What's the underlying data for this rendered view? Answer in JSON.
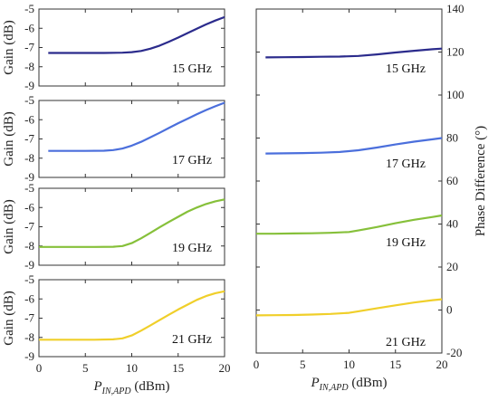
{
  "chart_data": [
    {
      "type": "line",
      "ylabel": "Gain (dB)",
      "xlim": [
        0,
        20
      ],
      "ylim": [
        -9,
        -5
      ],
      "yticks": [
        -5,
        -6,
        -7,
        -8,
        -9
      ],
      "xticks": [
        0,
        5,
        10,
        15,
        20
      ],
      "annotation": "15 GHz",
      "color": "#2b2b8c",
      "series": [
        {
          "x": [
            1,
            3,
            5,
            7,
            9,
            10,
            11,
            12,
            13,
            14,
            15,
            16,
            17,
            18,
            19,
            20
          ],
          "values": [
            -7.28,
            -7.28,
            -7.28,
            -7.28,
            -7.27,
            -7.24,
            -7.18,
            -7.06,
            -6.9,
            -6.7,
            -6.48,
            -6.25,
            -6.02,
            -5.8,
            -5.6,
            -5.42
          ]
        }
      ]
    },
    {
      "type": "line",
      "ylabel": "Gain (dB)",
      "xlim": [
        0,
        20
      ],
      "ylim": [
        -9,
        -5
      ],
      "yticks": [
        -5,
        -6,
        -7,
        -8,
        -9
      ],
      "xticks": [
        0,
        5,
        10,
        15,
        20
      ],
      "annotation": "17 GHz",
      "color": "#4b6fdc",
      "series": [
        {
          "x": [
            1,
            3,
            5,
            7,
            8,
            9,
            10,
            11,
            12,
            13,
            14,
            15,
            16,
            17,
            18,
            19,
            20
          ],
          "values": [
            -7.62,
            -7.62,
            -7.62,
            -7.61,
            -7.58,
            -7.5,
            -7.35,
            -7.15,
            -6.92,
            -6.68,
            -6.43,
            -6.18,
            -5.95,
            -5.72,
            -5.5,
            -5.3,
            -5.12
          ]
        }
      ]
    },
    {
      "type": "line",
      "ylabel": "Gain (dB)",
      "xlim": [
        0,
        20
      ],
      "ylim": [
        -9,
        -5
      ],
      "yticks": [
        -5,
        -6,
        -7,
        -8,
        -9
      ],
      "xticks": [
        0,
        5,
        10,
        15,
        20
      ],
      "annotation": "19 GHz",
      "color": "#86c03a",
      "series": [
        {
          "x": [
            0,
            2,
            4,
            6,
            8,
            9,
            10,
            11,
            12,
            13,
            14,
            15,
            16,
            17,
            18,
            19,
            20
          ],
          "values": [
            -8.05,
            -8.05,
            -8.05,
            -8.05,
            -8.04,
            -8.0,
            -7.85,
            -7.6,
            -7.32,
            -7.03,
            -6.75,
            -6.48,
            -6.22,
            -6.0,
            -5.82,
            -5.68,
            -5.58
          ]
        }
      ]
    },
    {
      "type": "line",
      "ylabel": "Gain (dB)",
      "xlim": [
        0,
        20
      ],
      "ylim": [
        -9,
        -5
      ],
      "yticks": [
        -5,
        -6,
        -7,
        -8,
        -9
      ],
      "xticks": [
        0,
        5,
        10,
        15,
        20
      ],
      "xlabel": "P_IN,APD (dBm)",
      "annotation": "21 GHz",
      "color": "#f0cf2a",
      "series": [
        {
          "x": [
            0,
            2,
            4,
            6,
            8,
            9,
            10,
            11,
            12,
            13,
            14,
            15,
            16,
            17,
            18,
            19,
            20
          ],
          "values": [
            -8.12,
            -8.12,
            -8.12,
            -8.12,
            -8.1,
            -8.05,
            -7.9,
            -7.65,
            -7.38,
            -7.1,
            -6.82,
            -6.55,
            -6.3,
            -6.05,
            -5.85,
            -5.7,
            -5.6
          ]
        }
      ]
    },
    {
      "type": "line",
      "ylabel": "Phase Difference (°)",
      "xlabel": "P_IN,APD (dBm)",
      "xlim": [
        0,
        20
      ],
      "ylim": [
        -20,
        140
      ],
      "yticks": [
        140,
        120,
        100,
        80,
        60,
        40,
        20,
        0,
        -20
      ],
      "xticks": [
        0,
        5,
        10,
        15,
        20
      ],
      "annotations": [
        "15 GHz",
        "17 GHz",
        "19 GHz",
        "21 GHz"
      ],
      "series": [
        {
          "name": "15 GHz",
          "color": "#2b2b8c",
          "x": [
            1,
            3,
            5,
            7,
            9,
            11,
            13,
            15,
            17,
            19,
            20
          ],
          "values": [
            117.5,
            117.6,
            117.7,
            117.8,
            117.9,
            118.2,
            118.9,
            119.8,
            120.6,
            121.3,
            121.6
          ]
        },
        {
          "name": "17 GHz",
          "color": "#4b6fdc",
          "x": [
            1,
            3,
            5,
            7,
            9,
            11,
            13,
            15,
            17,
            19,
            20
          ],
          "values": [
            72.8,
            72.9,
            73.0,
            73.2,
            73.5,
            74.3,
            75.6,
            77.0,
            78.3,
            79.4,
            80.0
          ]
        },
        {
          "name": "19 GHz",
          "color": "#86c03a",
          "x": [
            0,
            2,
            4,
            6,
            8,
            10,
            11,
            13,
            15,
            17,
            19,
            20
          ],
          "values": [
            35.5,
            35.5,
            35.6,
            35.7,
            35.9,
            36.3,
            37.0,
            38.6,
            40.4,
            42.0,
            43.3,
            44.0
          ]
        },
        {
          "name": "21 GHz",
          "color": "#f0cf2a",
          "x": [
            0,
            2,
            4,
            6,
            8,
            10,
            11,
            13,
            15,
            17,
            19,
            20
          ],
          "values": [
            -2.5,
            -2.4,
            -2.3,
            -2.1,
            -1.8,
            -1.3,
            -0.6,
            0.8,
            2.2,
            3.5,
            4.6,
            5.0
          ]
        }
      ]
    }
  ]
}
